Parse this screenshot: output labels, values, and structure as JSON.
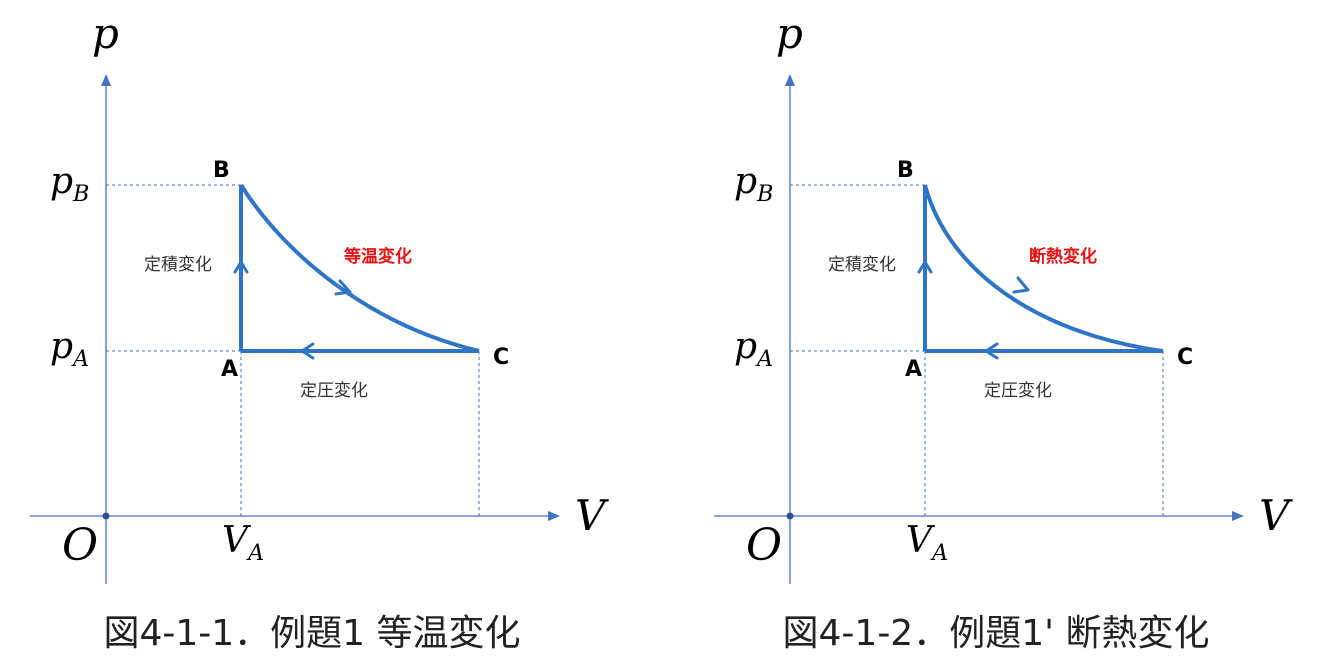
{
  "diagrams": [
    {
      "axis_y": "p",
      "axis_x": "V",
      "origin": "O",
      "p_b": {
        "main": "p",
        "sub": "B"
      },
      "p_a": {
        "main": "p",
        "sub": "A"
      },
      "v_a": {
        "main": "V",
        "sub": "A"
      },
      "points": {
        "a": "A",
        "b": "B",
        "c": "C"
      },
      "processes": {
        "ab": "定積変化",
        "bc": "等温変化",
        "ca": "定圧変化"
      },
      "caption": "図4-1-1．例題1 等温変化"
    },
    {
      "axis_y": "p",
      "axis_x": "V",
      "origin": "O",
      "p_b": {
        "main": "p",
        "sub": "B"
      },
      "p_a": {
        "main": "p",
        "sub": "A"
      },
      "v_a": {
        "main": "V",
        "sub": "A"
      },
      "points": {
        "a": "A",
        "b": "B",
        "c": "C"
      },
      "processes": {
        "ab": "定積変化",
        "bc": "断熱変化",
        "ca": "定圧変化"
      },
      "caption": "図4-1-2．例題1' 断熱変化"
    }
  ]
}
